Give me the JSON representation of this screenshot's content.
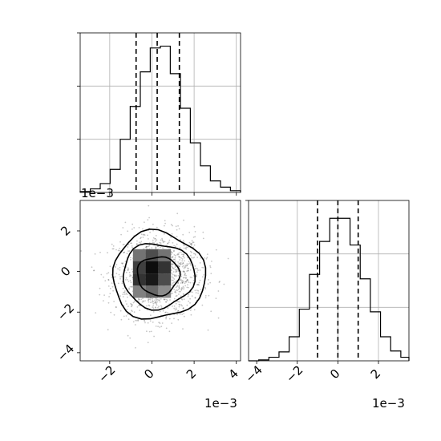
{
  "figure": {
    "type": "corner-plot"
  },
  "chart_data": [
    {
      "panel": "marginal-x",
      "type": "histogram",
      "xlim": [
        -3.4,
        4.2
      ],
      "offset_label": "1e−3",
      "bins": [
        {
          "x0": -3.4,
          "x1": -2.92,
          "count": 1
        },
        {
          "x0": -2.92,
          "x1": -2.45,
          "count": 4
        },
        {
          "x0": -2.45,
          "x1": -1.98,
          "count": 10
        },
        {
          "x0": -1.98,
          "x1": -1.5,
          "count": 26
        },
        {
          "x0": -1.5,
          "x1": -1.03,
          "count": 60
        },
        {
          "x0": -1.03,
          "x1": -0.55,
          "count": 97
        },
        {
          "x0": -0.55,
          "x1": -0.08,
          "count": 136
        },
        {
          "x0": -0.08,
          "x1": 0.4,
          "count": 163
        },
        {
          "x0": 0.4,
          "x1": 0.87,
          "count": 165
        },
        {
          "x0": 0.87,
          "x1": 1.35,
          "count": 134
        },
        {
          "x0": 1.35,
          "x1": 1.82,
          "count": 95
        },
        {
          "x0": 1.82,
          "x1": 2.3,
          "count": 56
        },
        {
          "x0": 2.3,
          "x1": 2.77,
          "count": 30
        },
        {
          "x0": 2.77,
          "x1": 3.25,
          "count": 13
        },
        {
          "x0": 3.25,
          "x1": 3.72,
          "count": 6
        },
        {
          "x0": 3.72,
          "x1": 4.2,
          "count": 2
        }
      ],
      "ymax": 180,
      "quantiles": [
        -0.75,
        0.25,
        1.3
      ],
      "grid_y": [
        60,
        120
      ],
      "ticks_y": [
        60,
        120
      ]
    },
    {
      "panel": "joint",
      "type": "2d-histogram-contour",
      "xlim": [
        -3.4,
        4.2
      ],
      "ylim": [
        -4.4,
        3.5
      ],
      "xticks": [
        {
          "v": -2,
          "label": "−2"
        },
        {
          "v": 0,
          "label": "0"
        },
        {
          "v": 2,
          "label": "2"
        },
        {
          "v": 4,
          "label": "4"
        }
      ],
      "yticks": [
        {
          "v": -4,
          "label": "−4"
        },
        {
          "v": -2,
          "label": "−2"
        },
        {
          "v": 0,
          "label": "0"
        },
        {
          "v": 2,
          "label": "2"
        }
      ],
      "x_offset_label": "1e−3",
      "y_offset_label": "1e−3",
      "center": [
        0.3,
        -0.2
      ],
      "contour_levels": [
        {
          "rx": 1.0,
          "ry": 0.95
        },
        {
          "rx": 1.7,
          "ry": 1.6
        },
        {
          "rx": 2.2,
          "ry": 2.15
        }
      ],
      "core_cells": [
        {
          "x": -0.6,
          "y": 0.8,
          "d": 0.55
        },
        {
          "x": 0.0,
          "y": 0.8,
          "d": 0.7
        },
        {
          "x": 0.6,
          "y": 0.8,
          "d": 0.55
        },
        {
          "x": -0.6,
          "y": 0.2,
          "d": 0.75
        },
        {
          "x": 0.0,
          "y": 0.2,
          "d": 0.95
        },
        {
          "x": 0.6,
          "y": 0.2,
          "d": 0.8
        },
        {
          "x": -0.6,
          "y": -0.4,
          "d": 0.8
        },
        {
          "x": 0.0,
          "y": -0.4,
          "d": 0.9
        },
        {
          "x": 0.6,
          "y": -0.4,
          "d": 0.7
        },
        {
          "x": -0.6,
          "y": -1.0,
          "d": 0.5
        },
        {
          "x": 0.0,
          "y": -1.0,
          "d": 0.6
        },
        {
          "x": 0.6,
          "y": -1.0,
          "d": 0.45
        }
      ],
      "scatter_count": 1400,
      "scatter_sigma": [
        1.05,
        1.05
      ]
    },
    {
      "panel": "marginal-y",
      "type": "histogram",
      "xlim": [
        -4.4,
        3.5
      ],
      "xticks": [
        {
          "v": -4,
          "label": "−4"
        },
        {
          "v": -2,
          "label": "−2"
        },
        {
          "v": 0,
          "label": "0"
        },
        {
          "v": 2,
          "label": "2"
        }
      ],
      "offset_label": "1e−3",
      "bins": [
        {
          "x0": -4.4,
          "x1": -3.9,
          "count": 0
        },
        {
          "x0": -3.9,
          "x1": -3.4,
          "count": 1
        },
        {
          "x0": -3.4,
          "x1": -2.9,
          "count": 4
        },
        {
          "x0": -2.9,
          "x1": -2.4,
          "count": 10
        },
        {
          "x0": -2.4,
          "x1": -1.9,
          "count": 27
        },
        {
          "x0": -1.9,
          "x1": -1.4,
          "count": 58
        },
        {
          "x0": -1.4,
          "x1": -0.9,
          "count": 97
        },
        {
          "x0": -0.9,
          "x1": -0.4,
          "count": 134
        },
        {
          "x0": -0.4,
          "x1": 0.1,
          "count": 160
        },
        {
          "x0": 0.1,
          "x1": 0.6,
          "count": 160
        },
        {
          "x0": 0.6,
          "x1": 1.1,
          "count": 130
        },
        {
          "x0": 1.1,
          "x1": 1.6,
          "count": 92
        },
        {
          "x0": 1.6,
          "x1": 2.1,
          "count": 55
        },
        {
          "x0": 2.1,
          "x1": 2.6,
          "count": 27
        },
        {
          "x0": 2.6,
          "x1": 3.1,
          "count": 11
        },
        {
          "x0": 3.1,
          "x1": 3.5,
          "count": 4
        }
      ],
      "ymax": 180,
      "quantiles": [
        -1.0,
        0.0,
        1.0
      ],
      "grid_x": [
        -2,
        0,
        2
      ],
      "grid_y": [
        60,
        120
      ],
      "ticks_y": [
        60,
        120
      ]
    }
  ]
}
